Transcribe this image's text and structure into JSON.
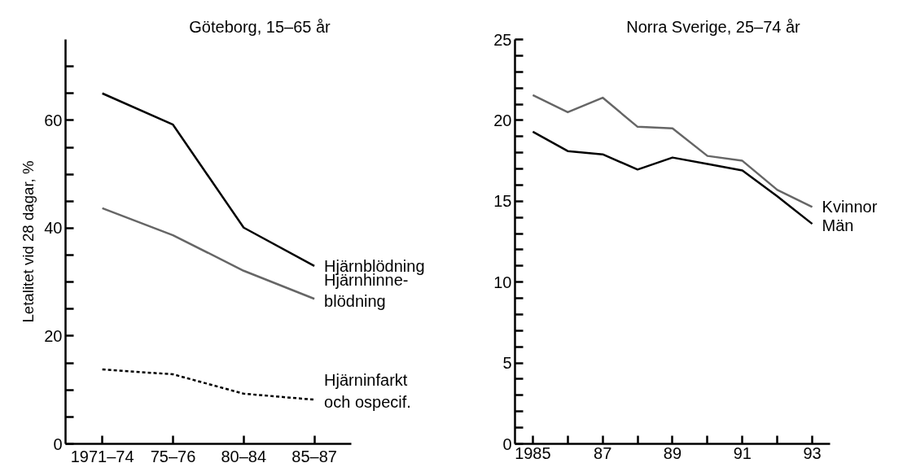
{
  "chart_data": [
    {
      "type": "line",
      "title": "Göteborg, 15–65 år",
      "ylabel": "Letalitet vid 28 dagar, %",
      "categories": [
        "1971–74",
        "75–76",
        "80–84",
        "85–87"
      ],
      "ylim": [
        0,
        75
      ],
      "yticks": [
        0,
        {
          "value": 5,
          "label": null
        },
        {
          "value": 10,
          "label": null
        },
        {
          "value": 15,
          "label": null
        },
        20,
        {
          "value": 25,
          "label": null
        },
        {
          "value": 30,
          "label": null
        },
        {
          "value": 35,
          "label": null
        },
        40,
        {
          "value": 45,
          "label": null
        },
        {
          "value": 50,
          "label": null
        },
        {
          "value": 55,
          "label": null
        },
        60,
        {
          "value": 65,
          "label": null
        },
        {
          "value": 70,
          "label": null
        }
      ],
      "grid": false,
      "legend": false,
      "series": [
        {
          "name": "Hjärnblödning",
          "color": "#000000",
          "line_style": "solid",
          "values": [
            65.0,
            59.2,
            40.1,
            33.0
          ]
        },
        {
          "name": "Hjärnhinne-\nblödning",
          "color": "#666666",
          "line_style": "solid",
          "values": [
            43.7,
            38.7,
            32.1,
            26.9
          ]
        },
        {
          "name": "Hjärninfarkt\noch ospecif.",
          "color": "#000000",
          "line_style": "dashed",
          "values": [
            13.8,
            12.9,
            9.3,
            8.2
          ]
        }
      ]
    },
    {
      "type": "line",
      "title": "Norra Sverige, 25–74 år",
      "x": [
        1985,
        1986,
        1987,
        1988,
        1989,
        1990,
        1991,
        1992,
        1993
      ],
      "xlim": [
        1984.49,
        1993.5
      ],
      "xticks": [
        {
          "value": 1985,
          "label": "1985"
        },
        {
          "value": 1986,
          "label": null
        },
        {
          "value": 1987,
          "label": "87"
        },
        {
          "value": 1988,
          "label": null
        },
        {
          "value": 1989,
          "label": "89"
        },
        {
          "value": 1990,
          "label": null
        },
        {
          "value": 1991,
          "label": "91"
        },
        {
          "value": 1992,
          "label": null
        },
        {
          "value": 1993,
          "label": "93"
        }
      ],
      "ylim": [
        0,
        25
      ],
      "yticks": [
        0,
        {
          "value": 1,
          "label": null
        },
        {
          "value": 2,
          "label": null
        },
        {
          "value": 3,
          "label": null
        },
        {
          "value": 4,
          "label": null
        },
        5,
        {
          "value": 6,
          "label": null
        },
        {
          "value": 7,
          "label": null
        },
        {
          "value": 8,
          "label": null
        },
        {
          "value": 9,
          "label": null
        },
        10,
        {
          "value": 11,
          "label": null
        },
        {
          "value": 12,
          "label": null
        },
        {
          "value": 13,
          "label": null
        },
        {
          "value": 14,
          "label": null
        },
        15,
        {
          "value": 16,
          "label": null
        },
        {
          "value": 17,
          "label": null
        },
        {
          "value": 18,
          "label": null
        },
        {
          "value": 19,
          "label": null
        },
        20,
        {
          "value": 21,
          "label": null
        },
        {
          "value": 22,
          "label": null
        },
        {
          "value": 23,
          "label": null
        },
        {
          "value": 24,
          "label": null
        },
        25
      ],
      "grid": false,
      "legend": false,
      "series": [
        {
          "name": "Kvinnor",
          "color": "#666666",
          "line_style": "solid",
          "values": [
            21.56,
            20.5,
            21.4,
            19.6,
            19.5,
            17.8,
            17.5,
            15.7,
            14.65
          ]
        },
        {
          "name": "Män",
          "color": "#000000",
          "line_style": "solid",
          "values": [
            19.3,
            18.1,
            17.9,
            16.96,
            17.7,
            17.3,
            16.9,
            15.3,
            13.6
          ]
        }
      ]
    }
  ]
}
